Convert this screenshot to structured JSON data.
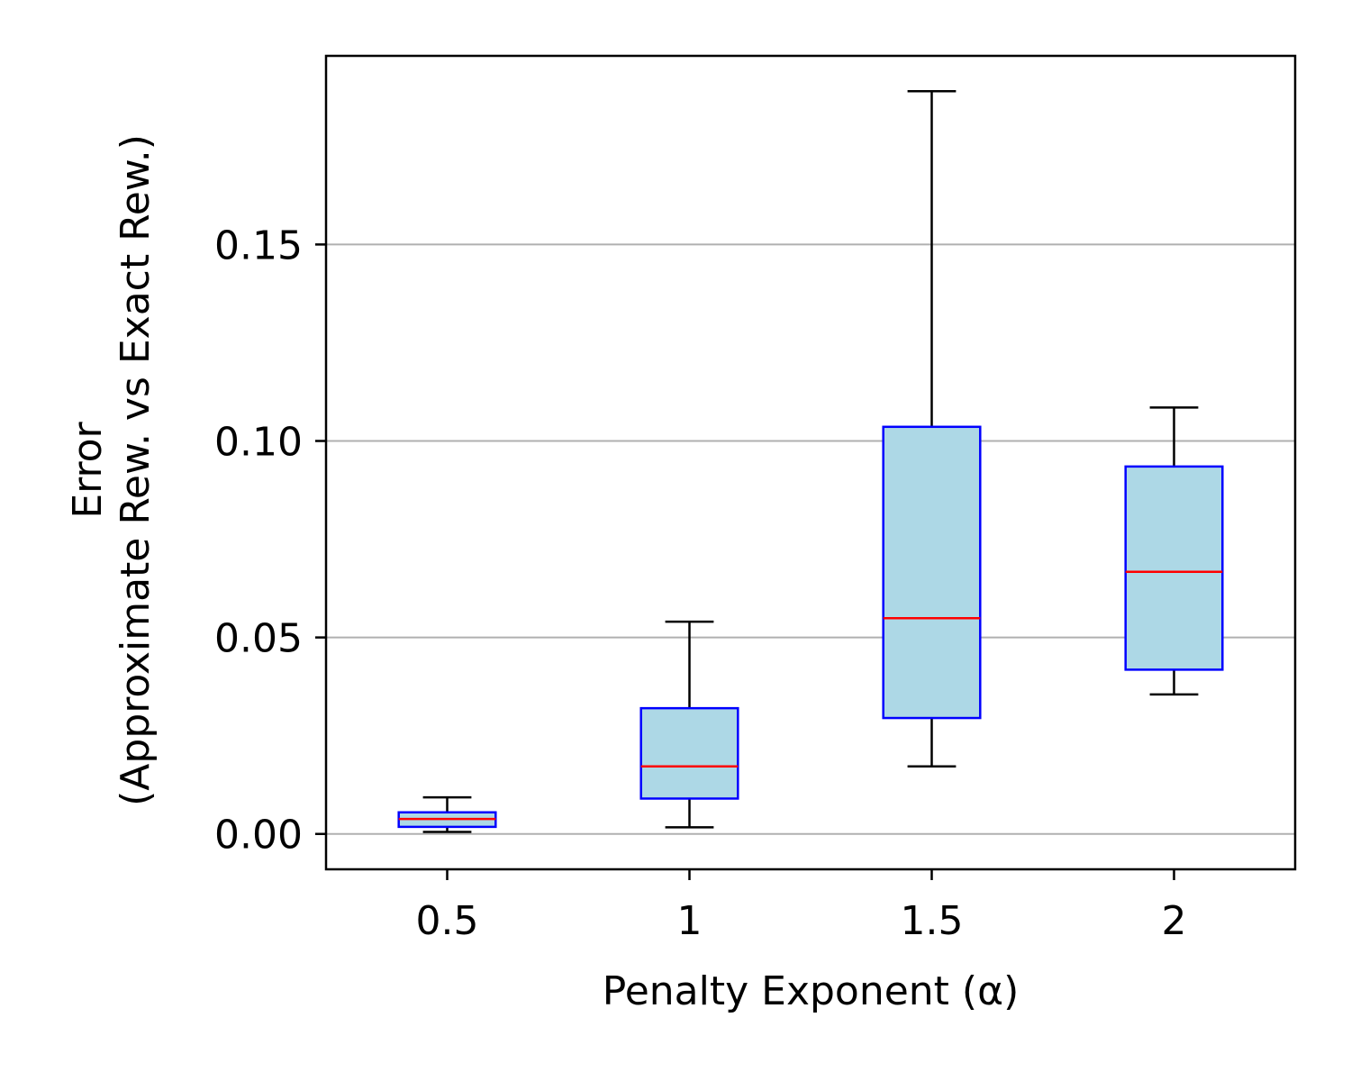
{
  "chart_data": {
    "type": "boxplot",
    "title": "",
    "xlabel": "Penalty Exponent (α)",
    "ylabel_lines": [
      "Error",
      "(Approximate Rew. vs Exact Rew.)"
    ],
    "categories": [
      "0.5",
      "1",
      "1.5",
      "2"
    ],
    "ylim": [
      -0.009,
      0.198
    ],
    "yticks": [
      0.0,
      0.05,
      0.1,
      0.15
    ],
    "ytick_labels": [
      "0.00",
      "0.05",
      "0.10",
      "0.15"
    ],
    "grid": "horizontal",
    "boxes": [
      {
        "label": "0.5",
        "whisker_low": 0.0005,
        "q1": 0.0018,
        "median": 0.0038,
        "q3": 0.0055,
        "whisker_high": 0.0093
      },
      {
        "label": "1",
        "whisker_low": 0.0017,
        "q1": 0.009,
        "median": 0.0172,
        "q3": 0.032,
        "whisker_high": 0.054
      },
      {
        "label": "1.5",
        "whisker_low": 0.0172,
        "q1": 0.0295,
        "median": 0.0549,
        "q3": 0.1036,
        "whisker_high": 0.189
      },
      {
        "label": "2",
        "whisker_low": 0.0355,
        "q1": 0.0418,
        "median": 0.0667,
        "q3": 0.0935,
        "whisker_high": 0.1085
      }
    ],
    "colors": {
      "box_fill": "#add8e6",
      "box_edge": "#0000ff",
      "median": "#ff0000",
      "whisker": "#000000",
      "grid": "#b0b0b0",
      "axes": "#000000"
    }
  }
}
